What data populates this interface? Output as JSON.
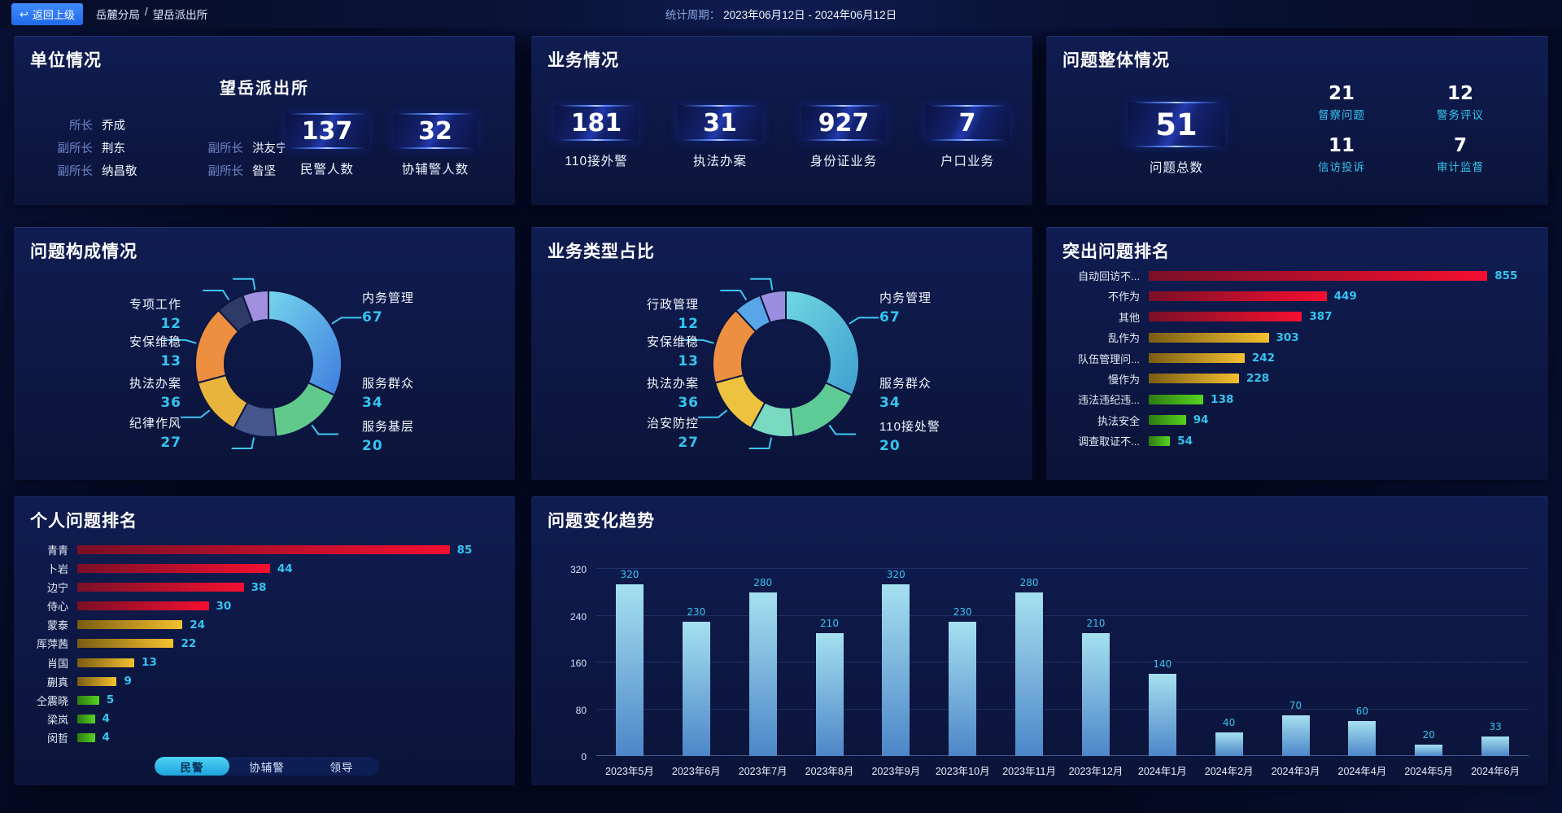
{
  "topbar": {
    "back_label": "返回上级",
    "breadcrumb_parent": "岳麓分局",
    "breadcrumb_separator": "/",
    "breadcrumb_current": "望岳派出所",
    "period_label": "统计周期：",
    "period_value": "2023年06月12日 - 2024年06月12日"
  },
  "unit_panel": {
    "title": "单位情况",
    "station_name": "望岳派出所",
    "officers": [
      {
        "role": "所长",
        "name": "乔成"
      },
      {
        "role": "副所长",
        "name": "荆东"
      },
      {
        "role": "副所长",
        "name": "洪友宁"
      },
      {
        "role": "副所长",
        "name": "纳昌敬"
      },
      {
        "role": "副所长",
        "name": "昝坚"
      }
    ],
    "stats": [
      {
        "value": "137",
        "label": "民警人数"
      },
      {
        "value": "32",
        "label": "协辅警人数"
      }
    ]
  },
  "business_panel": {
    "title": "业务情况",
    "stats": [
      {
        "value": "181",
        "label": "110接外警"
      },
      {
        "value": "31",
        "label": "执法办案"
      },
      {
        "value": "927",
        "label": "身份证业务"
      },
      {
        "value": "7",
        "label": "户口业务"
      }
    ]
  },
  "problem_panel": {
    "title": "问题整体情况",
    "total": {
      "value": "51",
      "label": "问题总数"
    },
    "stats": [
      {
        "value": "21",
        "label": "督察问题"
      },
      {
        "value": "12",
        "label": "警务评议"
      },
      {
        "value": "11",
        "label": "信访投诉"
      },
      {
        "value": "7",
        "label": "审计监督"
      }
    ]
  },
  "chart_data": [
    {
      "id": "problem_composition",
      "type": "pie",
      "title": "问题构成情况",
      "series": [
        {
          "label": "内务管理",
          "value": 67
        },
        {
          "label": "服务群众",
          "value": 34
        },
        {
          "label": "服务基层",
          "value": 20
        },
        {
          "label": "纪律作风",
          "value": 27
        },
        {
          "label": "执法办案",
          "value": 36
        },
        {
          "label": "安保维稳",
          "value": 13
        },
        {
          "label": "专项工作",
          "value": 12
        }
      ]
    },
    {
      "id": "business_type",
      "type": "pie",
      "title": "业务类型占比",
      "series": [
        {
          "label": "内务管理",
          "value": 67
        },
        {
          "label": "服务群众",
          "value": 34
        },
        {
          "label": "110接处警",
          "value": 20
        },
        {
          "label": "治安防控",
          "value": 27
        },
        {
          "label": "执法办案",
          "value": 36
        },
        {
          "label": "安保维稳",
          "value": 13
        },
        {
          "label": "行政管理",
          "value": 12
        }
      ]
    },
    {
      "id": "top_problems",
      "type": "bar",
      "orientation": "horizontal",
      "title": "突出问题排名",
      "categories": [
        "自动回访不...",
        "不作为",
        "其他",
        "乱作为",
        "队伍管理问...",
        "慢作为",
        "违法违纪违...",
        "执法安全",
        "调查取证不..."
      ],
      "values": [
        855,
        449,
        387,
        303,
        242,
        228,
        138,
        94,
        54
      ],
      "bar_colors": [
        "red",
        "red",
        "red",
        "gold",
        "gold",
        "gold",
        "green",
        "green",
        "green"
      ]
    },
    {
      "id": "personal_ranking",
      "type": "bar",
      "orientation": "horizontal",
      "title": "个人问题排名",
      "categories": [
        "青青",
        "卜岩",
        "边宁",
        "侍心",
        "蒙泰",
        "厍萍茜",
        "肖国",
        "蒯真",
        "仝震晓",
        "梁岚",
        "闵哲"
      ],
      "values": [
        85,
        44,
        38,
        30,
        24,
        22,
        13,
        9,
        5,
        4,
        4
      ],
      "bar_colors": [
        "red",
        "red",
        "red",
        "red",
        "gold",
        "gold",
        "gold",
        "gold",
        "green",
        "green",
        "green"
      ],
      "tabs": [
        "民警",
        "协辅警",
        "领导"
      ],
      "active_tab": "民警"
    },
    {
      "id": "problem_trend",
      "type": "bar",
      "title": "问题变化趋势",
      "categories": [
        "2023年5月",
        "2023年6月",
        "2023年7月",
        "2023年8月",
        "2023年9月",
        "2023年10月",
        "2023年11月",
        "2023年12月",
        "2024年1月",
        "2024年2月",
        "2024年3月",
        "2024年4月",
        "2024年5月",
        "2024年6月"
      ],
      "values": [
        320,
        230,
        280,
        210,
        320,
        230,
        280,
        210,
        140,
        40,
        70,
        60,
        20,
        33
      ],
      "yticks": [
        0,
        80,
        160,
        240,
        320
      ],
      "ymax": 320
    }
  ],
  "colors": {
    "accent_cyan": "#35c4ee",
    "back_button_blue": "#2b7cf0",
    "donut1": {
      "gradient": [
        "#74d6ec",
        "#3f7ce0"
      ],
      "slices": [
        "",
        "#62c98c",
        "#45568c",
        "#e8b43c",
        "#ec8f40",
        "#2e3a68",
        "#a18fe0"
      ]
    },
    "donut2": {
      "gradient": [
        "#6fd8e2",
        "#3f9ecf"
      ],
      "slices": [
        "",
        "#5ecb96",
        "#79d9c0",
        "#ecc23f",
        "#ec8f40",
        "#58a6e8",
        "#9b8ee0"
      ]
    },
    "bar_palettes": {
      "red": [
        "#7a0f26",
        "#f50f30"
      ],
      "gold": [
        "#7a5c12",
        "#f5c030"
      ],
      "green": [
        "#2f7a12",
        "#55d41f"
      ]
    },
    "trend_bar": [
      "#a5e0f0",
      "#4d86c8"
    ]
  }
}
